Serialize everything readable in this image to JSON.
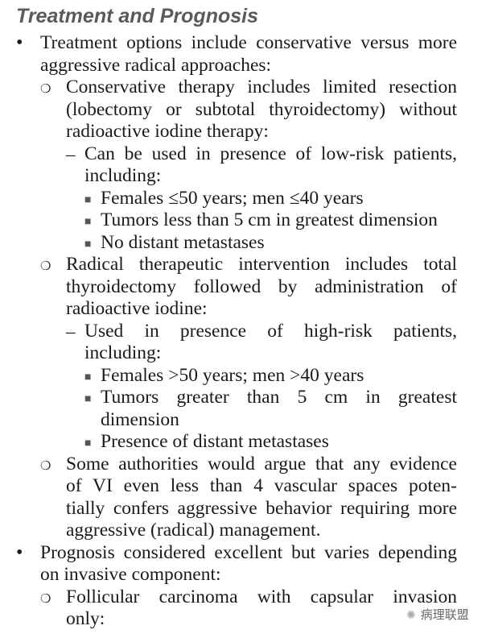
{
  "title": "Treatment and Prognosis",
  "items": [
    {
      "level": 1,
      "marker": "•",
      "lines": [
        {
          "t": "Treatment options include conservative versus more",
          "j": true
        },
        {
          "t": "aggressive radical approaches:",
          "j": false
        }
      ]
    },
    {
      "level": 2,
      "marker": "❍",
      "lines": [
        {
          "t": "Conservative therapy includes limited resection",
          "j": true
        },
        {
          "t": "(lobectomy or subtotal thyroidectomy) without",
          "j": true
        },
        {
          "t": "radioactive iodine therapy:",
          "j": false
        }
      ]
    },
    {
      "level": 3,
      "marker": "–",
      "lines": [
        {
          "t": "Can be used in presence of low-risk patients,",
          "j": true
        },
        {
          "t": "including:",
          "j": false
        }
      ]
    },
    {
      "level": 4,
      "marker": "■",
      "lines": [
        {
          "t": "Females ≤50 years; men ≤40 years",
          "j": false
        }
      ]
    },
    {
      "level": 4,
      "marker": "■",
      "lines": [
        {
          "t": "Tumors less than 5 cm in greatest dimension",
          "j": false
        }
      ]
    },
    {
      "level": 4,
      "marker": "■",
      "lines": [
        {
          "t": "No distant metastases",
          "j": false
        }
      ]
    },
    {
      "level": 2,
      "marker": "❍",
      "lines": [
        {
          "t": "Radical therapeutic intervention includes total",
          "j": true
        },
        {
          "t": "thyroidectomy followed by administration of",
          "j": true
        },
        {
          "t": "radioactive iodine:",
          "j": false
        }
      ]
    },
    {
      "level": 3,
      "marker": "–",
      "lines": [
        {
          "t": "Used in presence of high-risk patients,",
          "j": true
        },
        {
          "t": "including:",
          "j": false
        }
      ]
    },
    {
      "level": 4,
      "marker": "■",
      "lines": [
        {
          "t": "Females >50 years; men >40 years",
          "j": false
        }
      ]
    },
    {
      "level": 4,
      "marker": "■",
      "lines": [
        {
          "t": "Tumors greater than 5 cm in greatest",
          "j": true
        },
        {
          "t": "dimension",
          "j": false
        }
      ]
    },
    {
      "level": 4,
      "marker": "■",
      "lines": [
        {
          "t": "Presence of distant metastases",
          "j": false
        }
      ]
    },
    {
      "level": 2,
      "marker": "❍",
      "lines": [
        {
          "t": "Some authorities would argue that any evidence",
          "j": true
        },
        {
          "t": "of VI even less than 4 vascular spaces poten-",
          "j": true
        },
        {
          "t": "tially confers aggressive behavior requiring more",
          "j": true
        },
        {
          "t": "aggressive (radical) management.",
          "j": false
        }
      ]
    },
    {
      "level": 1,
      "marker": "•",
      "lines": [
        {
          "t": "Prognosis considered excellent but varies depending",
          "j": true
        },
        {
          "t": "on invasive component:",
          "j": false
        }
      ]
    },
    {
      "level": 2,
      "marker": "❍",
      "lines": [
        {
          "t": "Follicular carcinoma with capsular invasion",
          "j": true
        },
        {
          "t": "only:",
          "j": false
        }
      ]
    }
  ],
  "watermark": {
    "icon": "wechat-icon",
    "text": "病理联盟"
  }
}
